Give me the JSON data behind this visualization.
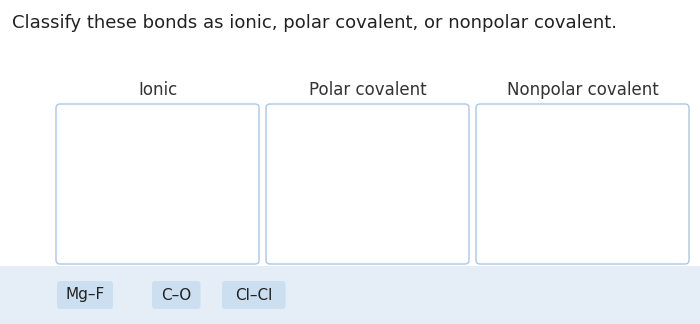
{
  "title": "Classify these bonds as ionic, polar covalent, or nonpolar covalent.",
  "title_fontsize": 13,
  "title_color": "#222222",
  "background_color": "#ffffff",
  "column_labels": [
    "Ionic",
    "Polar covalent",
    "Nonpolar covalent"
  ],
  "column_label_fontsize": 12,
  "column_label_color": "#333333",
  "box_border_color": "#aac8e8",
  "box_fill_color": "#ffffff",
  "chip_labels": [
    "Mg–F",
    "C–O",
    "Cl–Cl"
  ],
  "chip_bg_color": "#ccdff0",
  "chip_text_color": "#222222",
  "chip_fontsize": 11,
  "bottom_bar_color": "#e5eef6"
}
